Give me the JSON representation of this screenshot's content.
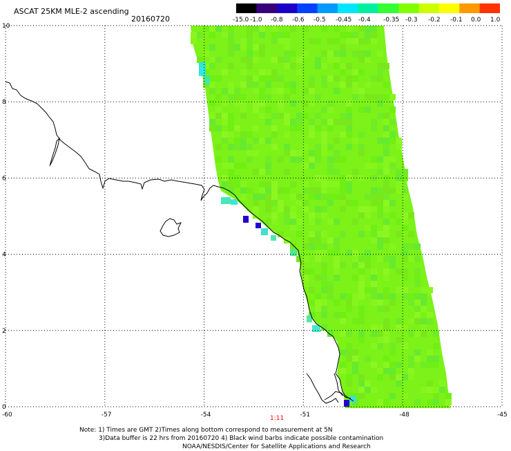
{
  "header": {
    "title": "ASCAT 25KM MLE-2 ascending",
    "date": "20160720"
  },
  "colorbar": {
    "labels": [
      "-15.0",
      "-1.0",
      "-0.8",
      "-0.6",
      "-0.5",
      "-0.45",
      "-0.4",
      "-0.35",
      "-0.3",
      "-0.2",
      "-0.1",
      "0.0",
      "1.0"
    ],
    "colors": [
      "#000000",
      "#3a007a",
      "#1c00c8",
      "#0040ff",
      "#0099ff",
      "#00e5ff",
      "#00f0a0",
      "#33ff33",
      "#7fff00",
      "#ccff00",
      "#ffff00",
      "#ff9900",
      "#ff3300"
    ]
  },
  "axes": {
    "x_ticks": [
      "-60",
      "-57",
      "-54",
      "-51",
      "-48",
      "-45"
    ],
    "y_ticks": [
      "0",
      "2",
      "4",
      "6",
      "8",
      "10"
    ]
  },
  "swath": {
    "base_color": "#7cf218",
    "time_label": "1:11",
    "time_label_color": "#ff0000"
  },
  "notes": {
    "line1": "Note: 1) Times are GMT 2)Times along bottom correspond to measurement at 5N",
    "line2": "3)Data buffer is 22 hrs from 20160720 4) Black wind barbs indicate possible contamination",
    "line3": "NOAA/NESDIS/Center for Satellite Applications and Research"
  }
}
